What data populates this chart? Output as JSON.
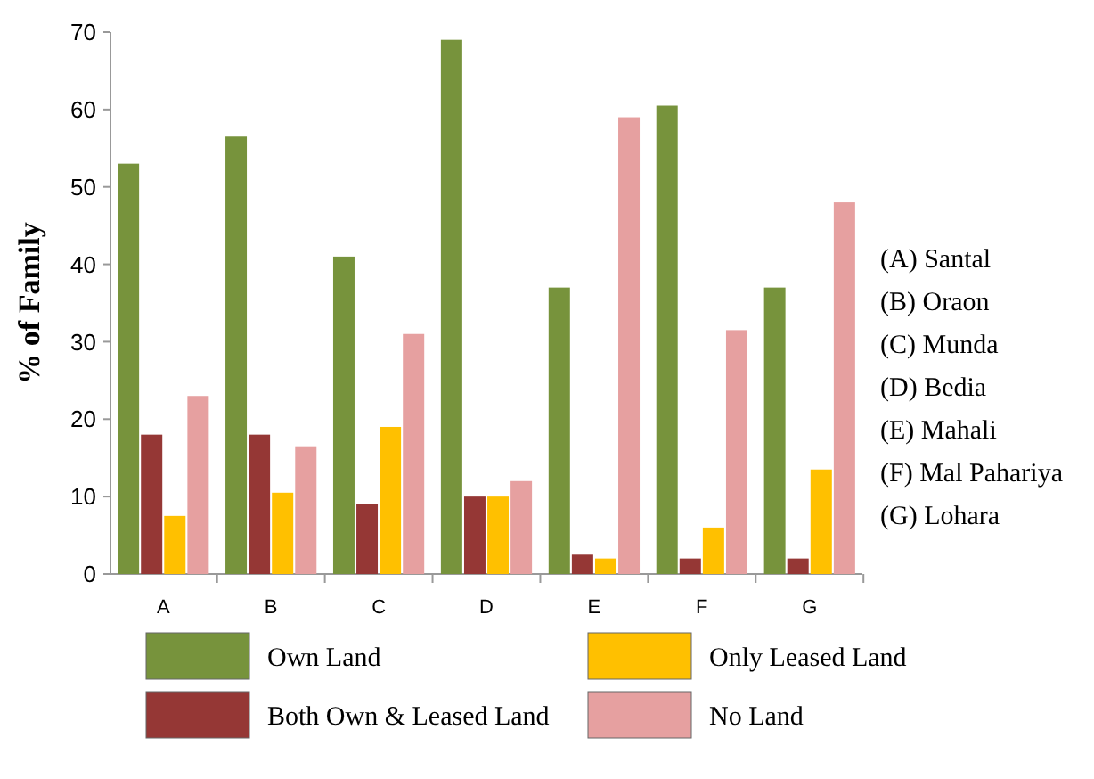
{
  "chart_data": {
    "type": "bar",
    "ylabel": "% of Family",
    "categories": [
      "A",
      "B",
      "C",
      "D",
      "E",
      "F",
      "G"
    ],
    "series": [
      {
        "name": "Own Land",
        "color": "#77933c",
        "values": [
          53,
          56.5,
          41,
          69,
          37,
          60.5,
          37
        ]
      },
      {
        "name": "Both Own & Leased Land",
        "color": "#953735",
        "values": [
          18,
          18,
          9,
          10,
          2.5,
          2,
          2
        ]
      },
      {
        "name": "Only Leased Land",
        "color": "#ffc000",
        "values": [
          7.5,
          10.5,
          19,
          10,
          2,
          6,
          13.5
        ]
      },
      {
        "name": "No Land",
        "color": "#e6a0a0",
        "values": [
          23,
          16.5,
          31,
          12,
          59,
          31.5,
          48
        ]
      }
    ],
    "ylim": [
      0,
      70
    ],
    "yticks": [
      0,
      10,
      20,
      30,
      40,
      50,
      60,
      70
    ],
    "grid": false,
    "legend": "bottom",
    "annotations": [
      "(A) Santal",
      "(B) Oraon",
      "(C) Munda",
      "(D) Bedia",
      "(E) Mahali",
      "(F) Mal Pahariya",
      "(G) Lohara"
    ]
  }
}
